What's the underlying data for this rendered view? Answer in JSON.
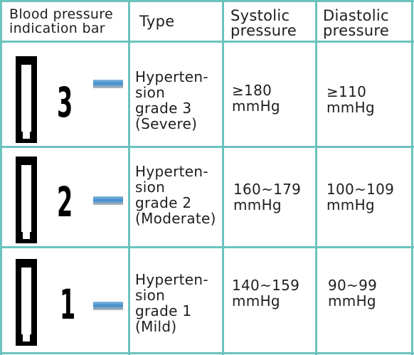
{
  "header": {
    "col1": [
      "Blood pressure",
      "indication bar"
    ],
    "col2": "Type",
    "col3": [
      "Systolic",
      "pressure"
    ],
    "col4": [
      "Diastolic",
      "pressure"
    ]
  },
  "rows": [
    {
      "grade_number": "3",
      "type": [
        "Hyperten-",
        "sion",
        "grade 3",
        "(Severe)"
      ],
      "systolic": [
        "≥180",
        "mmHg"
      ],
      "diastolic": [
        "≥110",
        "mmHg"
      ]
    },
    {
      "grade_number": "2",
      "type": [
        "Hyperten-",
        "sion",
        "grade 2",
        "(Moderate)"
      ],
      "systolic": [
        "160~179",
        "mmHg"
      ],
      "diastolic": [
        "100~109",
        "mmHg"
      ]
    },
    {
      "grade_number": "1",
      "type": [
        "Hyperten-",
        "sion",
        "grade 1",
        "(Mild)"
      ],
      "systolic": [
        "140~159",
        "mmHg"
      ],
      "diastolic": [
        "90~99",
        "mmHg"
      ]
    }
  ],
  "icons": {
    "indicator_bar": "pressure-bar-icon",
    "level_dash": "level-dash-icon"
  },
  "colors": {
    "grid": "#6cc3bd",
    "dash_blue": "#3f8ecf",
    "text": "#1e1e1e"
  }
}
